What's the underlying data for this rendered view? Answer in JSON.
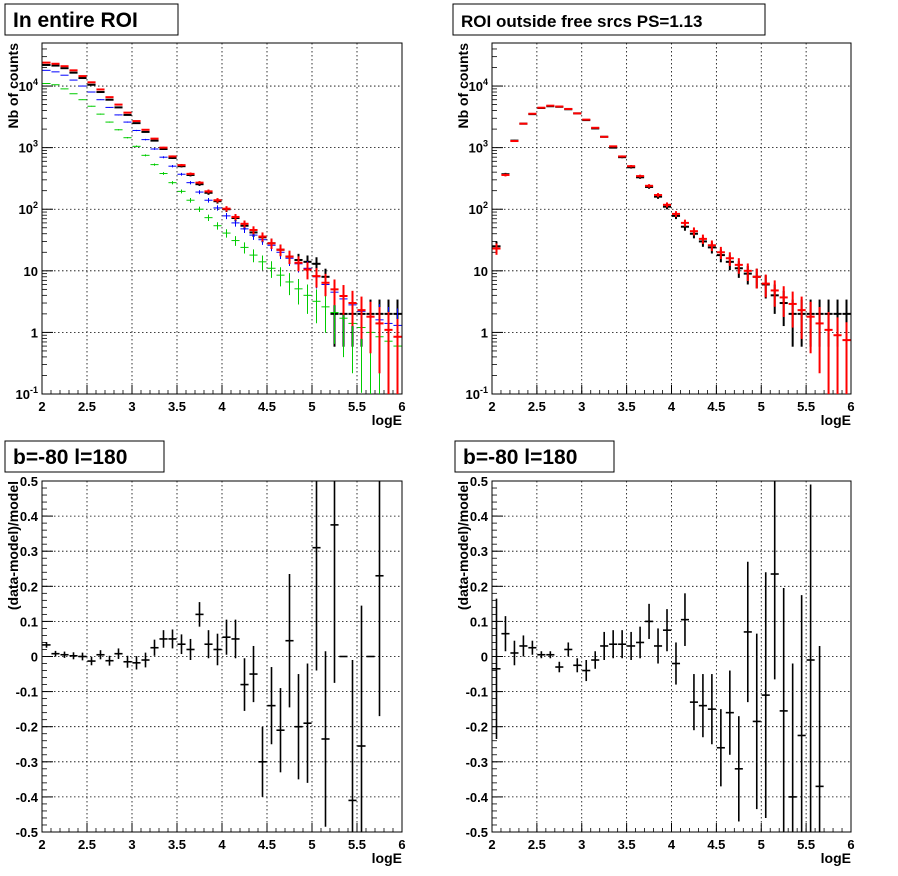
{
  "panels": [
    {
      "title": "In entire ROI",
      "chart_data": {
        "type": "scatter",
        "xlabel": "logE",
        "ylabel": "Nb of counts",
        "log_y": true,
        "xlim": [
          2,
          6
        ],
        "ylim": [
          0.1,
          50000
        ],
        "grid": true,
        "x_ticks": [
          "2",
          "2.5",
          "3",
          "3.5",
          "4",
          "4.5",
          "5",
          "5.5",
          "6"
        ],
        "y_ticks": [
          "10^-1",
          "1",
          "10",
          "10^2",
          "10^3",
          "10^4"
        ],
        "x": [
          2.0,
          2.1,
          2.2,
          2.3,
          2.4,
          2.5,
          2.6,
          2.7,
          2.8,
          2.9,
          3.0,
          3.1,
          3.2,
          3.3,
          3.4,
          3.5,
          3.6,
          3.7,
          3.8,
          3.9,
          4.0,
          4.1,
          4.2,
          4.3,
          4.4,
          4.5,
          4.6,
          4.7,
          4.8,
          4.9,
          5.0,
          5.1,
          5.2,
          5.3,
          5.4,
          5.5,
          5.6,
          5.7,
          5.8,
          5.9
        ],
        "series": [
          {
            "color": "#000000",
            "values": [
              22000,
              21500,
              19500,
              16500,
              13500,
              10500,
              8000,
              6000,
              4500,
              3400,
              2500,
              1800,
              1300,
              950,
              680,
              500,
              360,
              255,
              185,
              135,
              100,
              72,
              54,
              42,
              35,
              28,
              22,
              17,
              15,
              14,
              13,
              8,
              2,
              2,
              2,
              2,
              2,
              2,
              2,
              2
            ]
          },
          {
            "color": "#0000ff",
            "values": [
              18000,
              17000,
              15000,
              12500,
              10000,
              8000,
              6000,
              4500,
              3400,
              2600,
              1900,
              1350,
              950,
              700,
              500,
              370,
              270,
              190,
              140,
              105,
              78,
              60,
              48,
              38,
              32,
              26,
              20,
              16,
              13,
              11,
              8,
              6,
              4.5,
              3.5,
              2.8,
              2.2,
              1.8,
              1.6,
              1.4,
              1.3
            ]
          },
          {
            "color": "#00cc00",
            "values": [
              11000,
              10500,
              9000,
              7500,
              6000,
              4700,
              3500,
              2600,
              1950,
              1450,
              1050,
              750,
              530,
              380,
              270,
              195,
              140,
              100,
              73,
              54,
              41,
              31,
              24,
              18,
              14,
              11,
              8.5,
              6.6,
              5.1,
              4.0,
              3.2,
              2.6,
              2.1,
              1.7,
              1.4,
              1.2,
              1.0,
              0.85,
              0.72,
              0.6
            ]
          },
          {
            "color": "#ff0000",
            "values": [
              24000,
              23000,
              21000,
              18000,
              14500,
              11500,
              8800,
              6600,
              5000,
              3700,
              2700,
              1950,
              1400,
              1000,
              720,
              520,
              375,
              270,
              195,
              140,
              102,
              75,
              58,
              46,
              36,
              28,
              22,
              17,
              13.5,
              10.5,
              8.2,
              6.4,
              5.0,
              3.9,
              3.0,
              2.3,
              1.8,
              1.4,
              1.1,
              0.85
            ]
          }
        ]
      }
    },
    {
      "title": "ROI outside free srcs PS=1.13",
      "chart_data": {
        "type": "scatter",
        "xlabel": "logE",
        "ylabel": "Nb of counts",
        "log_y": true,
        "xlim": [
          2,
          6
        ],
        "ylim": [
          0.1,
          50000
        ],
        "grid": true,
        "x_ticks": [
          "2",
          "2.5",
          "3",
          "3.5",
          "4",
          "4.5",
          "5",
          "5.5",
          "6"
        ],
        "y_ticks": [
          "10^-1",
          "1",
          "10",
          "10^2",
          "10^3",
          "10^4"
        ],
        "x": [
          2.0,
          2.1,
          2.2,
          2.3,
          2.4,
          2.5,
          2.6,
          2.7,
          2.8,
          2.9,
          3.0,
          3.1,
          3.2,
          3.3,
          3.4,
          3.5,
          3.6,
          3.7,
          3.8,
          3.9,
          4.0,
          4.1,
          4.2,
          4.3,
          4.4,
          4.5,
          4.6,
          4.7,
          4.8,
          4.9,
          5.0,
          5.1,
          5.2,
          5.3,
          5.4,
          5.5,
          5.6,
          5.7,
          5.8,
          5.9
        ],
        "series": [
          {
            "color": "#000000",
            "values": [
              25,
              370,
              1300,
              2450,
              3500,
              4400,
              4700,
              4600,
              4200,
              3600,
              2800,
              2050,
              1500,
              1000,
              700,
              480,
              330,
              230,
              160,
              110,
              78,
              52,
              40,
              30,
              24,
              18,
              14,
              11,
              9,
              8,
              6,
              4,
              3,
              2,
              2,
              2,
              2,
              2,
              2,
              2
            ]
          },
          {
            "color": "#ff0000",
            "values": [
              23,
              360,
              1280,
              2450,
              3550,
              4450,
              4800,
              4650,
              4250,
              3600,
              2850,
              2100,
              1500,
              1050,
              720,
              500,
              345,
              240,
              170,
              118,
              84,
              60,
              44,
              33,
              26,
              20,
              16,
              12.5,
              10,
              8,
              6.2,
              4.8,
              3.7,
              2.9,
              2.3,
              1.8,
              1.4,
              1.1,
              0.9,
              0.75
            ]
          }
        ]
      }
    },
    {
      "title": "b=-80 l=180",
      "chart_data": {
        "type": "scatter",
        "xlabel": "logE",
        "ylabel": "(data-model)/model",
        "xlim": [
          2,
          6
        ],
        "ylim": [
          -0.5,
          0.5
        ],
        "grid": true,
        "x_ticks": [
          "2",
          "2.5",
          "3",
          "3.5",
          "4",
          "4.5",
          "5",
          "5.5",
          "6"
        ],
        "y_ticks": [
          "-0.5",
          "-0.4",
          "-0.3",
          "-0.2",
          "-0.1",
          "0",
          "0.1",
          "0.2",
          "0.3",
          "0.4",
          "0.5"
        ],
        "x": [
          2.05,
          2.15,
          2.25,
          2.35,
          2.45,
          2.55,
          2.65,
          2.75,
          2.85,
          2.95,
          3.05,
          3.15,
          3.25,
          3.35,
          3.45,
          3.55,
          3.65,
          3.75,
          3.85,
          3.95,
          4.05,
          4.15,
          4.25,
          4.35,
          4.45,
          4.55,
          4.65,
          4.75,
          4.85,
          4.95,
          5.05,
          5.15,
          5.25,
          5.35,
          5.45,
          5.55,
          5.65,
          5.75
        ],
        "y": [
          0.033,
          0.008,
          0.005,
          0.002,
          0.0,
          -0.013,
          0.005,
          -0.012,
          0.008,
          -0.015,
          -0.018,
          -0.01,
          0.025,
          0.05,
          0.05,
          0.035,
          0.02,
          0.12,
          0.035,
          0.02,
          0.055,
          0.05,
          -0.08,
          -0.05,
          -0.3,
          -0.14,
          -0.21,
          0.045,
          -0.2,
          -0.19,
          0.31,
          -0.235,
          0.375,
          0.0,
          -0.41,
          -0.255,
          0.0,
          0.23
        ],
        "err": [
          0.008,
          0.008,
          0.009,
          0.01,
          0.011,
          0.012,
          0.013,
          0.014,
          0.015,
          0.017,
          0.019,
          0.021,
          0.023,
          0.025,
          0.027,
          0.028,
          0.03,
          0.035,
          0.04,
          0.045,
          0.05,
          0.055,
          0.075,
          0.08,
          0.1,
          0.11,
          0.12,
          0.19,
          0.15,
          0.17,
          0.35,
          0.25,
          0.45,
          0.0,
          0.4,
          0.4,
          0.0,
          0.4
        ]
      }
    },
    {
      "title": "b=-80 l=180",
      "chart_data": {
        "type": "scatter",
        "xlabel": "logE",
        "ylabel": "(data-model)/model",
        "xlim": [
          2,
          6
        ],
        "ylim": [
          -0.5,
          0.5
        ],
        "grid": true,
        "x_ticks": [
          "2",
          "2.5",
          "3",
          "3.5",
          "4",
          "4.5",
          "5",
          "5.5",
          "6"
        ],
        "y_ticks": [
          "-0.5",
          "-0.4",
          "-0.3",
          "-0.2",
          "-0.1",
          "0",
          "0.1",
          "0.2",
          "0.3",
          "0.4",
          "0.5"
        ],
        "x": [
          2.05,
          2.15,
          2.25,
          2.35,
          2.45,
          2.55,
          2.65,
          2.75,
          2.85,
          2.95,
          3.05,
          3.15,
          3.25,
          3.35,
          3.45,
          3.55,
          3.65,
          3.75,
          3.85,
          3.95,
          4.05,
          4.15,
          4.25,
          4.35,
          4.45,
          4.55,
          4.65,
          4.75,
          4.85,
          4.95,
          5.05,
          5.15,
          5.25,
          5.35,
          5.45,
          5.55,
          5.65
        ],
        "y": [
          -0.035,
          0.065,
          0.01,
          0.03,
          0.025,
          0.005,
          0.005,
          -0.03,
          0.02,
          -0.025,
          -0.04,
          -0.01,
          0.03,
          0.035,
          0.035,
          0.03,
          0.04,
          0.1,
          0.03,
          0.075,
          -0.02,
          0.105,
          -0.13,
          -0.14,
          -0.15,
          -0.26,
          -0.16,
          -0.32,
          0.07,
          -0.185,
          -0.11,
          0.235,
          -0.155,
          -0.4,
          -0.225,
          -0.01,
          -0.37
        ],
        "err": [
          0.2,
          0.05,
          0.035,
          0.03,
          0.02,
          0.01,
          0.01,
          0.015,
          0.02,
          0.02,
          0.03,
          0.025,
          0.04,
          0.04,
          0.04,
          0.04,
          0.045,
          0.05,
          0.05,
          0.06,
          0.06,
          0.075,
          0.08,
          0.09,
          0.1,
          0.11,
          0.12,
          0.15,
          0.2,
          0.25,
          0.35,
          0.3,
          0.35,
          0.38,
          0.4,
          0.5,
          0.4
        ]
      }
    }
  ]
}
